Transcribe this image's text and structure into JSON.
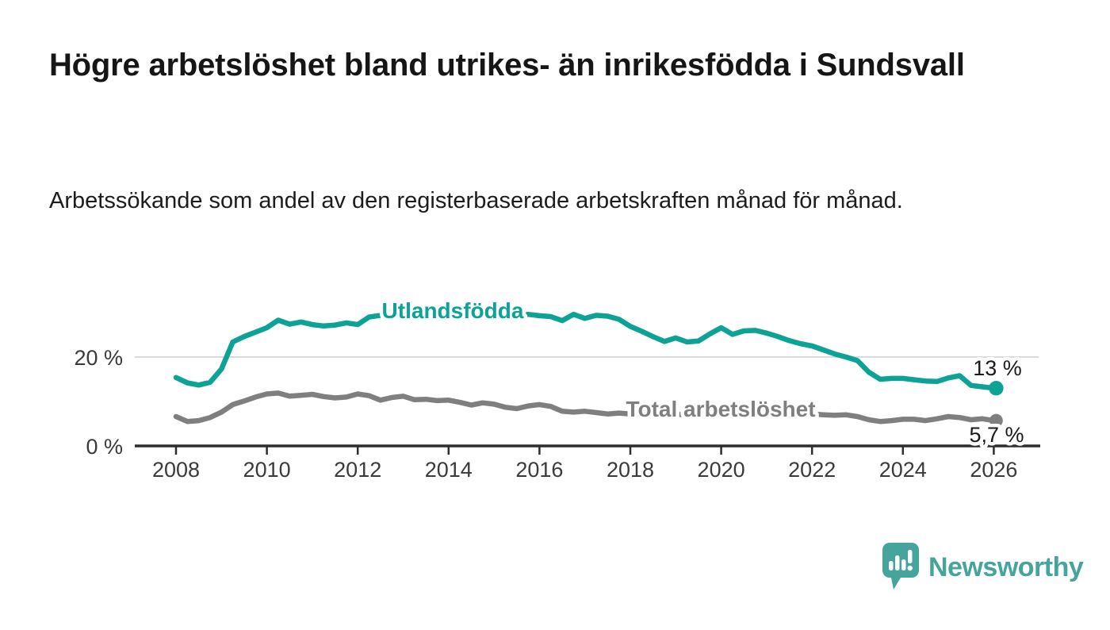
{
  "header": {
    "title": "Högre arbetslöshet bland utrikes- än inrikesfödda i Sundsvall",
    "subtitle": "Arbetssökande som andel av den registerbaserade arbetskraften månad för månad."
  },
  "chart_data": {
    "type": "line",
    "title": "Högre arbetslöshet bland utrikes- än inrikesfödda i Sundsvall",
    "subtitle": "Arbetssökande som andel av den registerbaserade arbetskraften månad för månad.",
    "xlabel": "",
    "ylabel": "",
    "xlim": [
      2007.5,
      2027
    ],
    "ylim": [
      0,
      31
    ],
    "grid": "horizontal-20-only",
    "legend": "inline-series-labels",
    "xticks": [
      2008,
      2010,
      2012,
      2014,
      2016,
      2018,
      2020,
      2022,
      2024,
      2026
    ],
    "yticks": [
      {
        "value": 20,
        "label": "20 %"
      },
      {
        "value": 0,
        "label": "0 %"
      }
    ],
    "x": [
      2008.0,
      2008.25,
      2008.5,
      2008.75,
      2009.0,
      2009.25,
      2009.5,
      2009.75,
      2010.0,
      2010.25,
      2010.5,
      2010.75,
      2011.0,
      2011.25,
      2011.5,
      2011.75,
      2012.0,
      2012.25,
      2012.5,
      2012.75,
      2013.0,
      2013.25,
      2013.5,
      2013.75,
      2014.0,
      2014.25,
      2014.5,
      2014.75,
      2015.0,
      2015.25,
      2015.5,
      2015.75,
      2016.0,
      2016.25,
      2016.5,
      2016.75,
      2017.0,
      2017.25,
      2017.5,
      2017.75,
      2018.0,
      2018.25,
      2018.5,
      2018.75,
      2019.0,
      2019.25,
      2019.5,
      2019.75,
      2020.0,
      2020.25,
      2020.5,
      2020.75,
      2021.0,
      2021.25,
      2021.5,
      2021.75,
      2022.0,
      2022.25,
      2022.5,
      2022.75,
      2023.0,
      2023.25,
      2023.5,
      2023.75,
      2024.0,
      2024.25,
      2024.5,
      2024.75,
      2025.0,
      2025.25,
      2025.5,
      2025.75,
      2026.0
    ],
    "series": [
      {
        "id": "utlandsfodda",
        "name": "Utlandsfödda",
        "color": "#0ca295",
        "end_label": "13 %",
        "end_value": 13,
        "values": [
          15.4,
          14.2,
          13.7,
          14.3,
          17.3,
          23.4,
          24.6,
          25.6,
          26.6,
          28.3,
          27.4,
          27.9,
          27.3,
          27.0,
          27.2,
          27.7,
          27.3,
          29.0,
          29.4,
          30.0,
          29.5,
          29.8,
          29.4,
          29.7,
          29.3,
          29.6,
          29.2,
          29.5,
          29.1,
          29.4,
          29.0,
          29.6,
          29.3,
          29.1,
          28.2,
          29.6,
          28.7,
          29.4,
          29.2,
          28.5,
          26.9,
          25.8,
          24.6,
          23.5,
          24.3,
          23.4,
          23.6,
          25.2,
          26.6,
          25.1,
          25.9,
          26.0,
          25.4,
          24.6,
          23.7,
          23.0,
          22.5,
          21.6,
          20.7,
          20.0,
          19.2,
          16.6,
          15.0,
          15.2,
          15.2,
          14.9,
          14.6,
          14.5,
          15.3,
          15.8,
          13.6,
          13.3,
          13.0
        ]
      },
      {
        "id": "total",
        "name": "Total arbetslöshet",
        "color": "#7f7f7f",
        "end_label": "5,7 %",
        "end_value": 5.7,
        "values": [
          6.6,
          5.5,
          5.7,
          6.4,
          7.6,
          9.3,
          10.1,
          11.0,
          11.7,
          11.9,
          11.2,
          11.4,
          11.6,
          11.1,
          10.8,
          11.0,
          11.7,
          11.3,
          10.3,
          10.9,
          11.2,
          10.4,
          10.5,
          10.2,
          10.3,
          9.8,
          9.2,
          9.7,
          9.4,
          8.7,
          8.4,
          9.0,
          9.3,
          8.9,
          7.8,
          7.6,
          7.8,
          7.5,
          7.2,
          7.4,
          7.2,
          7.0,
          6.9,
          7.0,
          7.1,
          7.0,
          7.2,
          7.5,
          8.1,
          9.2,
          9.3,
          8.8,
          8.4,
          8.1,
          7.8,
          7.4,
          7.2,
          7.0,
          6.9,
          7.0,
          6.6,
          5.9,
          5.5,
          5.7,
          6.0,
          6.0,
          5.7,
          6.1,
          6.6,
          6.4,
          5.9,
          6.1,
          5.7
        ]
      }
    ]
  },
  "footer": {
    "brand": "Newsworthy",
    "logo_icon": "bar-chart-speech-bubble-icon"
  },
  "colors": {
    "foreign_born_line": "#0ca295",
    "total_line": "#7f7f7f",
    "brand_teal": "#45a49b",
    "axis": "#2e2e2e",
    "gridline": "#dadada",
    "text": "#161616"
  }
}
